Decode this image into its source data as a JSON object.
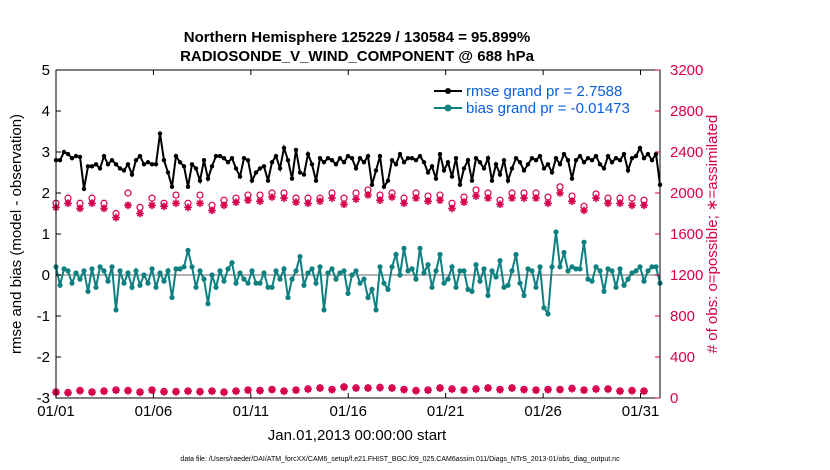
{
  "chart_data": {
    "type": "line",
    "title_line1": "Northern Hemisphere 125229 / 130584 = 95.899%",
    "title_line2": "RADIOSONDE_V_WIND_COMPONENT @ 688 hPa",
    "xlabel": "Jan.01,2013 00:00:00 start",
    "ylabel": "rmse and bias (model - observation)",
    "ylabel_right": "# of obs: o=possible; ∗=assimilated",
    "x_ticks": [
      {
        "x": 0,
        "label": "01/01"
      },
      {
        "x": 5,
        "label": "01/06"
      },
      {
        "x": 10,
        "label": "01/11"
      },
      {
        "x": 15,
        "label": "01/16"
      },
      {
        "x": 20,
        "label": "01/21"
      },
      {
        "x": 25,
        "label": "01/26"
      },
      {
        "x": 30,
        "label": "01/31"
      }
    ],
    "xlim": [
      0,
      31
    ],
    "ylim": [
      -3,
      5
    ],
    "y_ticks": [
      "-3",
      "-2",
      "-1",
      "0",
      "1",
      "2",
      "3",
      "4",
      "5"
    ],
    "ylim_right": [
      0,
      3200
    ],
    "y_ticks_right": [
      "0",
      "400",
      "800",
      "1200",
      "1600",
      "2000",
      "2400",
      "2800",
      "3200"
    ],
    "zero_line": 0,
    "colors": {
      "rmse": "#000000",
      "bias": "#0e8080",
      "obs": "#d6004e",
      "zero": "#b4b4b4",
      "legend_text": "#0a5ee0"
    },
    "series": [
      {
        "name": "rmse grand pr = 2.7588",
        "key": "rmse",
        "values": [
          2.8,
          2.8,
          3.0,
          2.95,
          2.85,
          2.9,
          2.88,
          2.1,
          2.65,
          2.65,
          2.7,
          2.6,
          2.9,
          2.7,
          2.8,
          2.7,
          2.6,
          2.55,
          2.7,
          2.45,
          2.8,
          2.9,
          2.7,
          2.75,
          2.7,
          2.7,
          3.45,
          2.8,
          2.5,
          2.15,
          2.9,
          2.75,
          2.65,
          2.15,
          2.7,
          2.6,
          2.3,
          2.8,
          2.35,
          2.65,
          2.9,
          2.9,
          2.85,
          2.75,
          2.85,
          2.6,
          2.4,
          2.85,
          2.8,
          2.3,
          2.5,
          2.6,
          2.65,
          2.3,
          2.75,
          2.9,
          2.6,
          3.1,
          2.8,
          2.35,
          3.05,
          2.5,
          2.45,
          2.95,
          2.7,
          2.3,
          2.85,
          2.75,
          2.85,
          2.8,
          2.7,
          2.85,
          2.75,
          2.9,
          2.85,
          2.6,
          2.85,
          2.75,
          2.9,
          2.2,
          2.55,
          2.9,
          2.15,
          2.3,
          2.8,
          2.7,
          2.95,
          2.75,
          2.85,
          2.85,
          2.8,
          2.9,
          2.75,
          2.5,
          2.65,
          2.35,
          2.95,
          2.55,
          2.75,
          2.4,
          2.85,
          2.2,
          2.6,
          2.8,
          2.3,
          2.85,
          2.75,
          2.6,
          2.85,
          2.3,
          2.7,
          2.45,
          2.8,
          2.3,
          2.6,
          2.85,
          2.75,
          2.55,
          2.7,
          2.85,
          2.8,
          2.9,
          2.6,
          2.7,
          2.5,
          2.85,
          2.7,
          2.95,
          2.8,
          2.35,
          2.8,
          2.9,
          2.75,
          2.85,
          2.8,
          2.9,
          2.7,
          2.6,
          2.9,
          2.75,
          2.85,
          2.8,
          2.95,
          2.55,
          2.85,
          2.9,
          3.1,
          2.85,
          2.95,
          2.8,
          2.95,
          2.2
        ]
      },
      {
        "name": "bias grand pr = -0.01473",
        "key": "bias",
        "values": [
          0.2,
          -0.25,
          0.15,
          0.1,
          -0.2,
          0.05,
          -0.1,
          0.1,
          -0.4,
          0.15,
          -0.3,
          0.2,
          0.1,
          -0.15,
          0.2,
          -0.85,
          0.1,
          -0.2,
          0.05,
          -0.3,
          0.1,
          -0.25,
          0.0,
          -0.2,
          0.15,
          -0.3,
          0.05,
          -0.15,
          0.1,
          -0.55,
          0.15,
          0.15,
          0.2,
          0.6,
          0.2,
          -0.3,
          0.1,
          -0.1,
          -0.7,
          0.0,
          -0.3,
          0.1,
          -0.15,
          0.15,
          0.3,
          -0.2,
          0.05,
          -0.1,
          -0.2,
          0.1,
          -0.2,
          -0.2,
          0.05,
          -0.3,
          -0.3,
          0.1,
          -0.1,
          0.15,
          -0.55,
          -0.1,
          0.1,
          0.45,
          -0.25,
          0.05,
          0.15,
          -0.2,
          0.2,
          -0.85,
          0.05,
          0.15,
          -0.1,
          0.05,
          0.1,
          -0.45,
          0.0,
          0.1,
          -0.2,
          -0.1,
          -0.55,
          -0.35,
          -0.85,
          0.2,
          -0.2,
          -0.35,
          0.2,
          0.5,
          0.0,
          0.65,
          0.1,
          0.15,
          -0.1,
          0.65,
          0.05,
          0.25,
          -0.3,
          0.1,
          0.5,
          -0.2,
          -0.1,
          0.2,
          -0.3,
          0.1,
          0.1,
          -0.35,
          -0.4,
          0.25,
          -0.15,
          0.15,
          -0.5,
          0.1,
          -0.05,
          0.35,
          -0.3,
          -0.25,
          0.1,
          0.5,
          -0.2,
          -0.5,
          0.15,
          0.1,
          -0.3,
          0.2,
          -0.8,
          -0.95,
          0.2,
          1.05,
          0.2,
          0.55,
          0.1,
          0.2,
          0.15,
          0.15,
          0.8,
          -0.1,
          -0.15,
          0.2,
          0.1,
          -0.4,
          0.15,
          0.1,
          -0.3,
          0.15,
          -0.25,
          -0.1,
          0.05,
          0.1,
          0.2,
          -0.15,
          0.1,
          0.2,
          0.2,
          -0.2
        ]
      },
      {
        "name": "possible",
        "key": "possible",
        "axis": "right",
        "values": [
          1900,
          1850,
          2000,
          1950,
          1950,
          2050,
          1900,
          2100,
          1950,
          1950,
          2050,
          1950,
          1900,
          2050,
          1880,
          1800,
          1950,
          1850,
          2000,
          1860,
          1900,
          1860,
          1900,
          1980,
          1950,
          1830,
          1880,
          1900,
          1920,
          1880,
          1980,
          2000,
          2000,
          1900,
          2000,
          2050,
          1980,
          1980,
          1950,
          1880,
          1900,
          1920,
          1930,
          1850,
          1920,
          1950,
          1880,
          1980,
          1980,
          1950,
          1950,
          1980,
          1950,
          1870,
          2000,
          2000,
          1950,
          2000,
          1970,
          1920,
          1950,
          2000,
          1900,
          1950,
          1950,
          1980,
          1950,
          1950,
          1950,
          2000,
          1980,
          1950,
          1950,
          1950,
          2000,
          2000,
          2050,
          1980,
          2030,
          2060,
          2060,
          1980,
          1950,
          1980,
          2000,
          2050,
          2050,
          1950,
          2030,
          1980,
          2000,
          1980,
          2000,
          1970,
          1950,
          1930,
          1980,
          1980,
          1950,
          1900,
          2040,
          2090,
          1960,
          2000,
          2050,
          2030,
          1980,
          1950,
          2000,
          1930,
          2000,
          1930,
          2000,
          2000,
          2000,
          1950,
          2030,
          2000,
          1950,
          1950,
          2000,
          1950,
          1950,
          1960,
          1900,
          1950,
          2060,
          1980,
          1950,
          1970,
          1930,
          1950,
          1870,
          1980,
          1950,
          1990,
          1930,
          2000,
          1950,
          2050,
          1930,
          1950,
          2000,
          1950,
          1950,
          1980,
          2000,
          1930,
          1950,
          2000
        ]
      },
      {
        "name": "assimilated",
        "key": "assimilated",
        "axis": "right",
        "values": [
          1860,
          1800,
          1950,
          1900,
          1920,
          1970,
          1850,
          2050,
          1900,
          1900,
          1960,
          1900,
          1850,
          1960,
          1830,
          1760,
          1880,
          1800,
          1880,
          1800,
          1860,
          1800,
          1850,
          1900,
          1880,
          1780,
          1830,
          1870,
          1880,
          1840,
          1900,
          1940,
          1940,
          1860,
          1940,
          1930,
          1900,
          1920,
          1880,
          1830,
          1860,
          1870,
          1880,
          1830,
          1870,
          1910,
          1840,
          1920,
          1930,
          1910,
          1900,
          1920,
          1900,
          1850,
          1960,
          1960,
          1900,
          1950,
          1920,
          1900,
          1910,
          1950,
          1860,
          1900,
          1900,
          1930,
          1920,
          1900,
          1880,
          1950,
          1920,
          1900,
          1890,
          1900,
          1950,
          1940,
          2000,
          1930,
          1980,
          2000,
          2020,
          1930,
          1900,
          1930,
          1960,
          2000,
          2000,
          1900,
          1980,
          1930,
          1950,
          1930,
          1960,
          1920,
          1900,
          1880,
          1930,
          1930,
          1900,
          1850,
          1990,
          2050,
          1910,
          1950,
          2010,
          1970,
          1940,
          1900,
          1950,
          1880,
          1960,
          1890,
          1950,
          1940,
          1950,
          1910,
          1960,
          1950,
          1910,
          1900,
          1950,
          1900,
          1900,
          1900,
          1850,
          1900,
          2000,
          1940,
          1900,
          1920,
          1880,
          1900,
          1830,
          1940,
          1910,
          1950,
          1870,
          1950,
          1900,
          2000,
          1850,
          1900,
          1940,
          1900,
          1880,
          1930,
          1940,
          1880,
          1900,
          1950
        ]
      },
      {
        "name": "possible (lower)",
        "key": "low_possible",
        "axis": "right",
        "values": [
          60,
          55,
          65,
          55,
          80,
          70,
          75,
          80,
          65,
          60,
          70,
          75,
          70,
          55,
          70,
          80,
          60,
          55,
          75,
          70,
          75,
          60,
          55,
          65,
          80,
          75,
          60,
          65,
          55,
          60,
          65,
          60,
          65,
          70,
          60,
          55,
          65,
          75,
          70,
          70,
          65,
          65,
          60,
          60,
          75,
          70,
          80,
          60,
          80,
          70,
          90,
          75,
          100,
          75,
          85,
          75,
          80,
          70,
          65,
          80,
          80,
          75,
          80,
          90,
          85,
          75,
          100,
          110,
          90,
          85,
          90,
          80,
          110,
          90,
          80,
          100,
          85,
          80,
          100,
          85,
          95,
          105,
          90,
          95,
          100,
          90,
          100,
          85,
          100,
          80,
          75,
          90,
          105,
          80,
          95,
          90,
          100,
          110,
          95,
          90,
          100,
          85,
          80,
          100,
          95,
          90,
          85,
          90,
          100,
          90,
          80,
          85,
          95,
          80,
          100,
          90,
          95,
          85,
          90,
          100,
          80,
          70,
          90,
          85,
          80,
          90,
          85,
          80,
          90,
          95,
          85,
          75,
          80,
          95,
          80,
          90,
          75,
          80,
          90,
          85,
          80,
          70,
          80,
          85,
          75,
          90,
          75,
          70,
          80,
          5
        ]
      },
      {
        "name": "assimilated (lower)",
        "key": "low_assimilated",
        "axis": "right",
        "values": [
          55,
          50,
          60,
          50,
          75,
          65,
          70,
          75,
          60,
          55,
          65,
          70,
          65,
          50,
          65,
          75,
          55,
          50,
          70,
          65,
          70,
          55,
          50,
          60,
          75,
          70,
          55,
          60,
          50,
          55,
          60,
          55,
          60,
          65,
          55,
          50,
          60,
          70,
          65,
          65,
          60,
          60,
          55,
          55,
          70,
          65,
          75,
          55,
          75,
          65,
          85,
          70,
          95,
          70,
          80,
          70,
          75,
          65,
          60,
          75,
          75,
          70,
          75,
          85,
          80,
          70,
          95,
          105,
          85,
          80,
          85,
          75,
          105,
          85,
          75,
          95,
          80,
          75,
          95,
          80,
          90,
          100,
          85,
          90,
          95,
          85,
          95,
          80,
          95,
          75,
          70,
          85,
          100,
          75,
          90,
          85,
          95,
          105,
          90,
          85,
          95,
          80,
          75,
          95,
          90,
          85,
          80,
          85,
          95,
          85,
          75,
          80,
          90,
          75,
          95,
          85,
          90,
          80,
          85,
          95,
          75,
          65,
          85,
          80,
          75,
          85,
          80,
          75,
          85,
          90,
          80,
          70,
          75,
          90,
          75,
          85,
          70,
          75,
          85,
          80,
          75,
          65,
          75,
          80,
          70,
          85,
          70,
          65,
          75,
          3
        ]
      }
    ],
    "legend": [
      {
        "key": "rmse",
        "label": "rmse grand pr = 2.7588"
      },
      {
        "key": "bias",
        "label": "bias grand pr = -0.01473"
      }
    ],
    "legend_position": "top-right",
    "footnote": "data file: /Users/raeder/DAI/ATM_forcXX/CAM6_setup/f.e21.FHIST_BGC.f09_025.CAM6assim.011/Diags_NTrS_2013-01/obs_diag_output.nc"
  }
}
